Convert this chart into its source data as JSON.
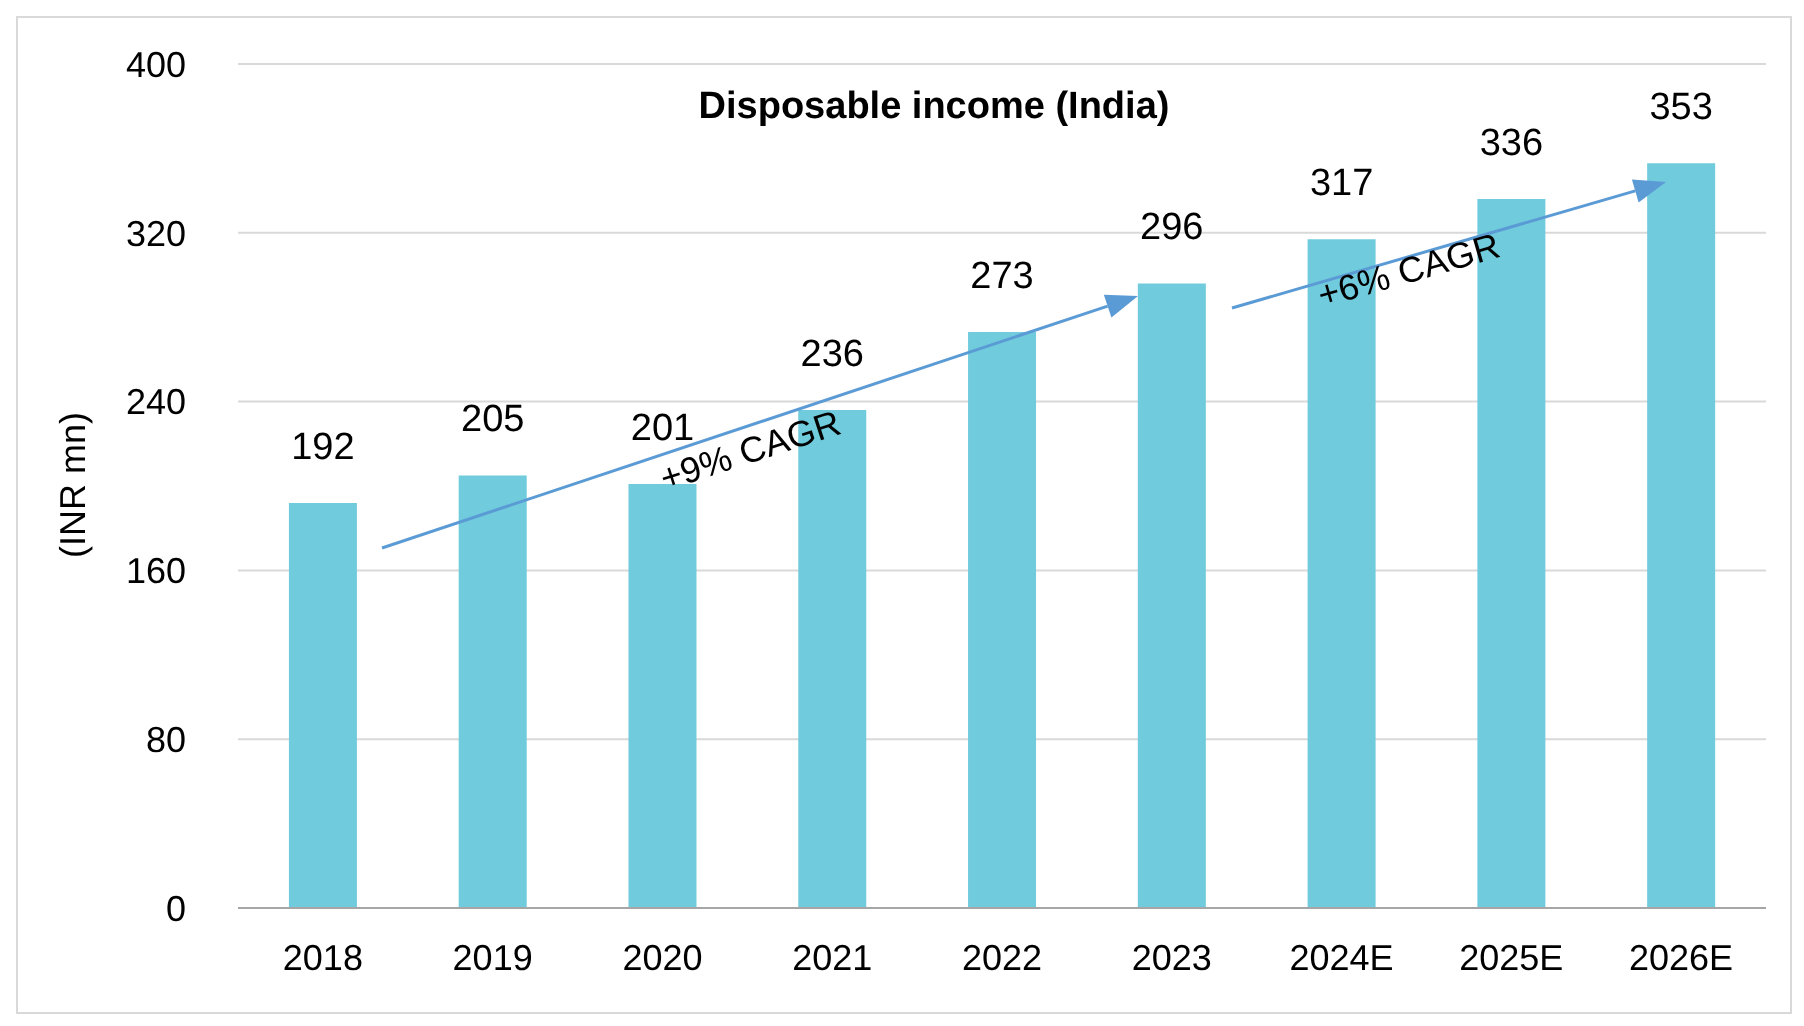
{
  "chart_data": {
    "type": "bar",
    "title": "Disposable income (India)",
    "ylabel": "(INR mn)",
    "categories": [
      "2018",
      "2019",
      "2020",
      "2021",
      "2022",
      "2023",
      "2024E",
      "2025E",
      "2026E"
    ],
    "values": [
      192,
      205,
      201,
      236,
      273,
      296,
      317,
      336,
      353
    ],
    "color": "#70cbdc",
    "ylim": [
      0,
      400
    ],
    "yticks": [
      0,
      80,
      160,
      240,
      320,
      400
    ],
    "grid": "y",
    "data_labels": true,
    "annotations": [
      "+9% CAGR",
      "+6% CAGR"
    ]
  }
}
